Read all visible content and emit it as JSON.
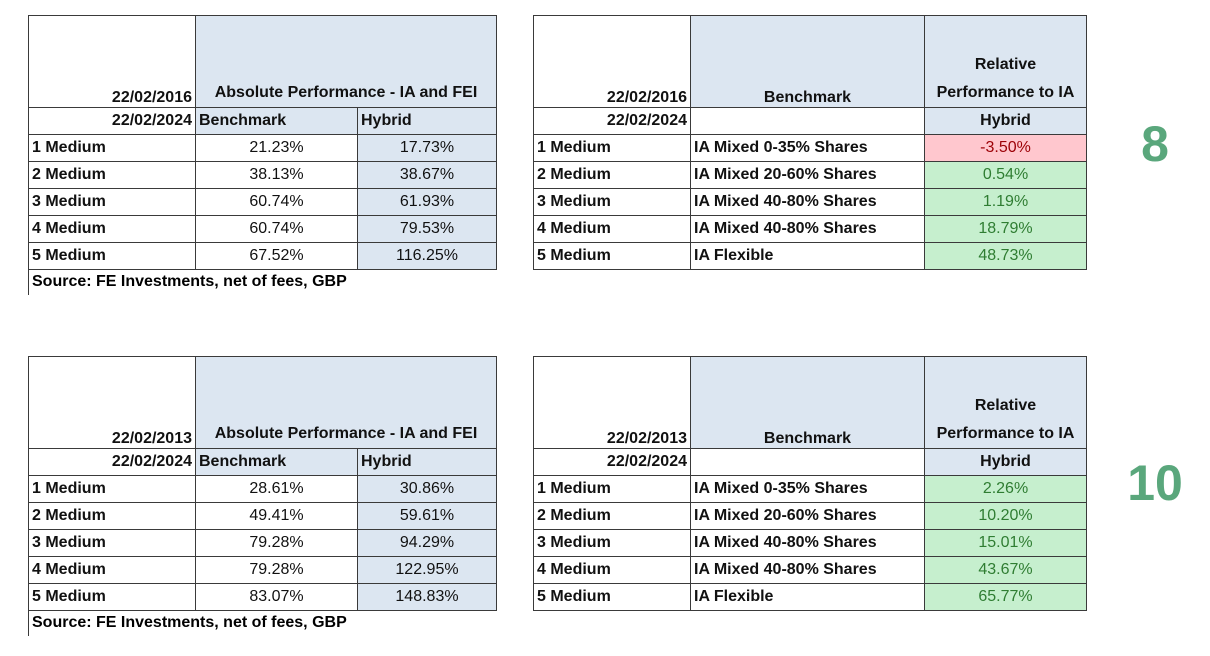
{
  "sections": [
    {
      "left": {
        "date_from": "22/02/2016",
        "date_to": "22/02/2024",
        "title": "Absolute Performance - IA and FEI",
        "columns": [
          "Benchmark",
          "Hybrid"
        ],
        "rows": [
          [
            "1 Medium",
            "21.23%",
            "17.73%"
          ],
          [
            "2 Medium",
            "38.13%",
            "38.67%"
          ],
          [
            "3 Medium",
            "60.74%",
            "61.93%"
          ],
          [
            "4 Medium",
            "60.74%",
            "79.53%"
          ],
          [
            "5 Medium",
            "67.52%",
            "116.25%"
          ]
        ],
        "source": "Source: FE Investments, net of fees, GBP"
      },
      "right": {
        "date_from": "22/02/2016",
        "date_to": "22/02/2024",
        "benchmark_header": "Benchmark",
        "title": "Relative Performance to IA",
        "column": "Hybrid",
        "rows": [
          [
            "1 Medium",
            "IA Mixed 0-35% Shares",
            "-3.50%"
          ],
          [
            "2 Medium",
            "IA Mixed 20-60% Shares",
            "0.54%"
          ],
          [
            "3 Medium",
            "IA Mixed 40-80% Shares",
            "1.19%"
          ],
          [
            "4 Medium",
            "IA Mixed 40-80% Shares",
            "18.79%"
          ],
          [
            "5 Medium",
            "IA Flexible",
            "48.73%"
          ]
        ]
      },
      "badge": "8"
    },
    {
      "left": {
        "date_from": "22/02/2013",
        "date_to": "22/02/2024",
        "title": "Absolute Performance - IA and FEI",
        "columns": [
          "Benchmark",
          "Hybrid"
        ],
        "rows": [
          [
            "1 Medium",
            "28.61%",
            "30.86%"
          ],
          [
            "2 Medium",
            "49.41%",
            "59.61%"
          ],
          [
            "3 Medium",
            "79.28%",
            "94.29%"
          ],
          [
            "4 Medium",
            "79.28%",
            "122.95%"
          ],
          [
            "5 Medium",
            "83.07%",
            "148.83%"
          ]
        ],
        "source": "Source: FE Investments, net of fees, GBP"
      },
      "right": {
        "date_from": "22/02/2013",
        "date_to": "22/02/2024",
        "benchmark_header": "Benchmark",
        "title": "Relative Performance to IA",
        "column": "Hybrid",
        "rows": [
          [
            "1 Medium",
            "IA Mixed 0-35% Shares",
            "2.26%"
          ],
          [
            "2 Medium",
            "IA Mixed 20-60% Shares",
            "10.20%"
          ],
          [
            "3 Medium",
            "IA Mixed 40-80% Shares",
            "15.01%"
          ],
          [
            "4 Medium",
            "IA Mixed 40-80% Shares",
            "43.67%"
          ],
          [
            "5 Medium",
            "IA Flexible",
            "65.77%"
          ]
        ]
      },
      "badge": "10"
    }
  ]
}
